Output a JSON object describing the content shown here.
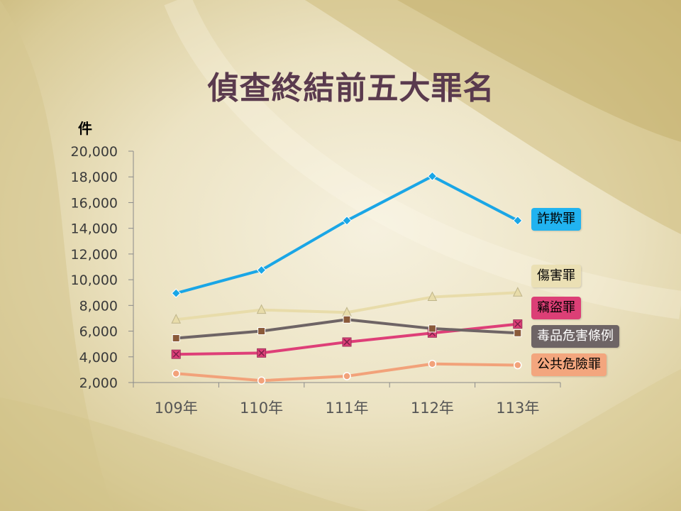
{
  "title": "偵查終結前五大罪名",
  "unit_label": "件",
  "colors": {
    "fraud": "#1aa6e6",
    "injury": "#e8dcaa",
    "theft": "#de3f78",
    "drugs": "#6e6465",
    "public_danger": "#f2a27a"
  },
  "chart_data": {
    "type": "line",
    "title": "偵查終結前五大罪名",
    "ylabel": "件",
    "xlabel": "",
    "categories": [
      "109年",
      "110年",
      "111年",
      "112年",
      "113年"
    ],
    "ylim": [
      2000,
      20000
    ],
    "yticks": [
      "20,000",
      "18,000",
      "16,000",
      "14,000",
      "12,000",
      "10,000",
      "8,000",
      "6,000",
      "4,000",
      "2,000"
    ],
    "ytick_values": [
      20000,
      18000,
      16000,
      14000,
      12000,
      10000,
      8000,
      6000,
      4000,
      2000
    ],
    "grid": false,
    "series": [
      {
        "name": "詐欺罪",
        "key": "fraud",
        "marker": "diamond",
        "values": [
          8950,
          10750,
          14600,
          18050,
          14600
        ]
      },
      {
        "name": "傷害罪",
        "key": "injury",
        "marker": "triangle",
        "values": [
          6900,
          7650,
          7450,
          8650,
          9000
        ]
      },
      {
        "name": "竊盜罪",
        "key": "theft",
        "marker": "x-square",
        "values": [
          4200,
          4300,
          5150,
          5850,
          6550
        ]
      },
      {
        "name": "毒品危害條例",
        "key": "drugs",
        "marker": "square",
        "values": [
          5450,
          6000,
          6900,
          6200,
          5850
        ]
      },
      {
        "name": "公共危險罪",
        "key": "public_danger",
        "marker": "circle",
        "values": [
          2700,
          2150,
          2500,
          3450,
          3350
        ]
      }
    ]
  }
}
